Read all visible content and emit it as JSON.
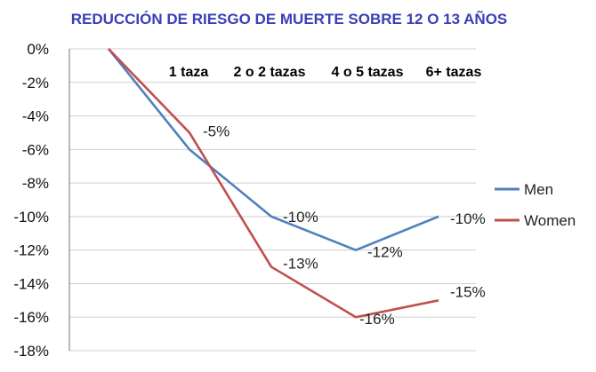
{
  "chart_data": {
    "type": "line",
    "title": "REDUCCIÓN DE RIESGO DE MUERTE SOBRE 12 O 13 AÑOS",
    "categories": [
      "0",
      "1 taza",
      "2 o 2 tazas",
      "4 o 5 tazas",
      "6+ tazas"
    ],
    "category_labels": [
      "1 taza",
      "2 o 2 tazas",
      "4 o 5 tazas",
      "6+ tazas"
    ],
    "y_ticks": [
      "0%",
      "-2%",
      "-4%",
      "-6%",
      "-8%",
      "-10%",
      "-12%",
      "-14%",
      "-16%",
      "-18%"
    ],
    "ylim": [
      -18,
      0
    ],
    "grid": true,
    "legend_position": "right",
    "series": [
      {
        "name": "Men",
        "color": "#4f81bd",
        "values": [
          0,
          -6,
          -10,
          -12,
          -10
        ],
        "labels": [
          "",
          "",
          "-10%",
          "-12%",
          "-10%"
        ]
      },
      {
        "name": "Women",
        "color": "#c0504d",
        "values": [
          0,
          -5,
          -13,
          -16,
          -15
        ],
        "labels": [
          "",
          "-5%",
          "-13%",
          "-16%",
          "-15%"
        ]
      }
    ]
  }
}
